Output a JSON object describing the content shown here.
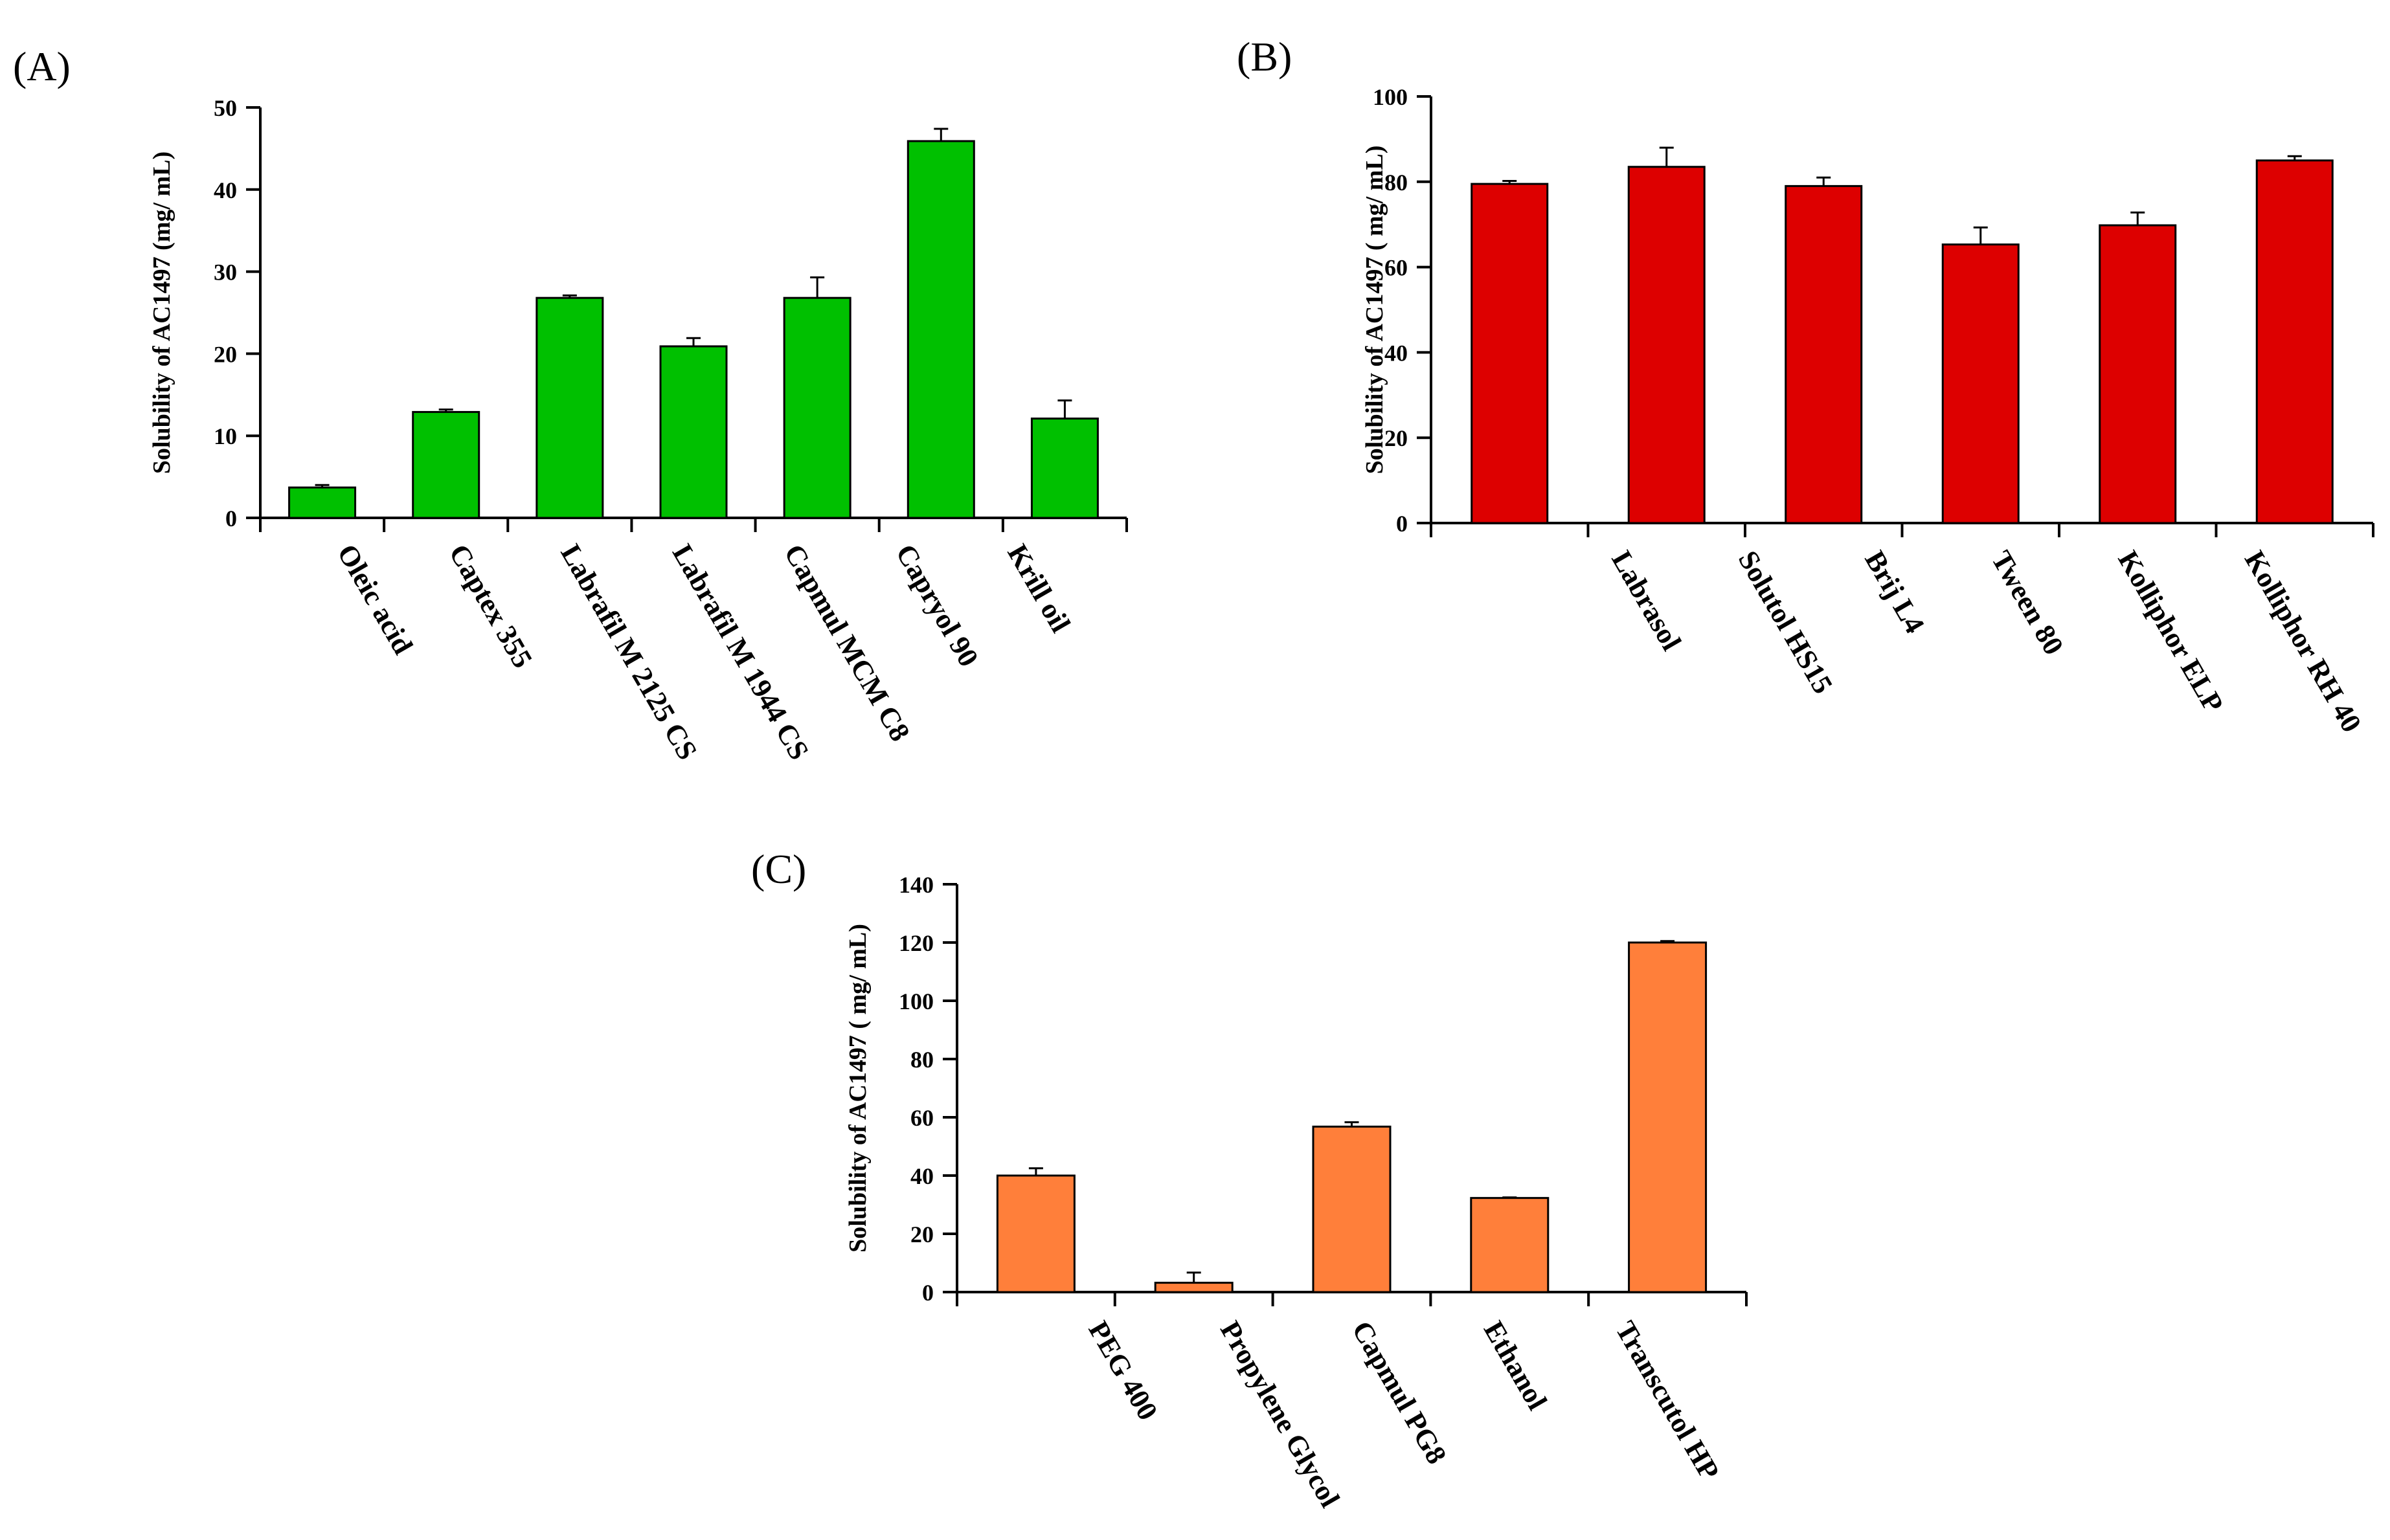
{
  "chart_data": [
    {
      "id": "A",
      "type": "bar",
      "panel_label": "(A)",
      "title": "",
      "xlabel": "",
      "ylabel": "Solubility of AC1497 (mg/ mL)",
      "ylim": [
        0,
        50
      ],
      "yticks": [
        0,
        10,
        20,
        30,
        40,
        50
      ],
      "color": "#00c000",
      "categories": [
        "Oleic acid",
        "Captex 355",
        "Labrafil M 2125 CS",
        "Labrafil M 1944 CS",
        "Capmul MCM C8",
        "Capryol 90",
        "Krill oil"
      ],
      "values": [
        3.7,
        12.9,
        26.8,
        20.9,
        26.8,
        45.9,
        12.1
      ],
      "errors": [
        0.3,
        0.3,
        0.3,
        1.0,
        2.5,
        1.5,
        2.2
      ]
    },
    {
      "id": "B",
      "type": "bar",
      "panel_label": "(B)",
      "title": "",
      "xlabel": "",
      "ylabel": "Solubility of AC1497 ( mg/ mL)",
      "ylim": [
        0,
        100
      ],
      "yticks": [
        0,
        20,
        40,
        60,
        80,
        100
      ],
      "color": "#dd0000",
      "categories": [
        "Labrasol",
        "Solutol HS15",
        "Brij L4",
        "Tween 80",
        "Kolliphor ELP",
        "Kolliphor RH 40"
      ],
      "values": [
        79.5,
        83.5,
        79.0,
        65.3,
        69.8,
        85.0
      ],
      "errors": [
        0.7,
        4.5,
        2.0,
        4.0,
        3.0,
        1.0
      ]
    },
    {
      "id": "C",
      "type": "bar",
      "panel_label": "(C)",
      "title": "",
      "xlabel": "",
      "ylabel": "Solubility of AC1497 ( mg/ mL)",
      "ylim": [
        0,
        140
      ],
      "yticks": [
        0,
        20,
        40,
        60,
        80,
        100,
        120,
        140
      ],
      "color": "#ff7f3a",
      "categories": [
        "PEG 400",
        "Propylene Glycol",
        "Capmul PG8",
        "Ethanol",
        "Transcutol HP"
      ],
      "values": [
        40.0,
        3.2,
        56.8,
        32.3,
        120.0
      ],
      "errors": [
        2.5,
        3.5,
        1.5,
        0.2,
        0.5
      ]
    }
  ]
}
